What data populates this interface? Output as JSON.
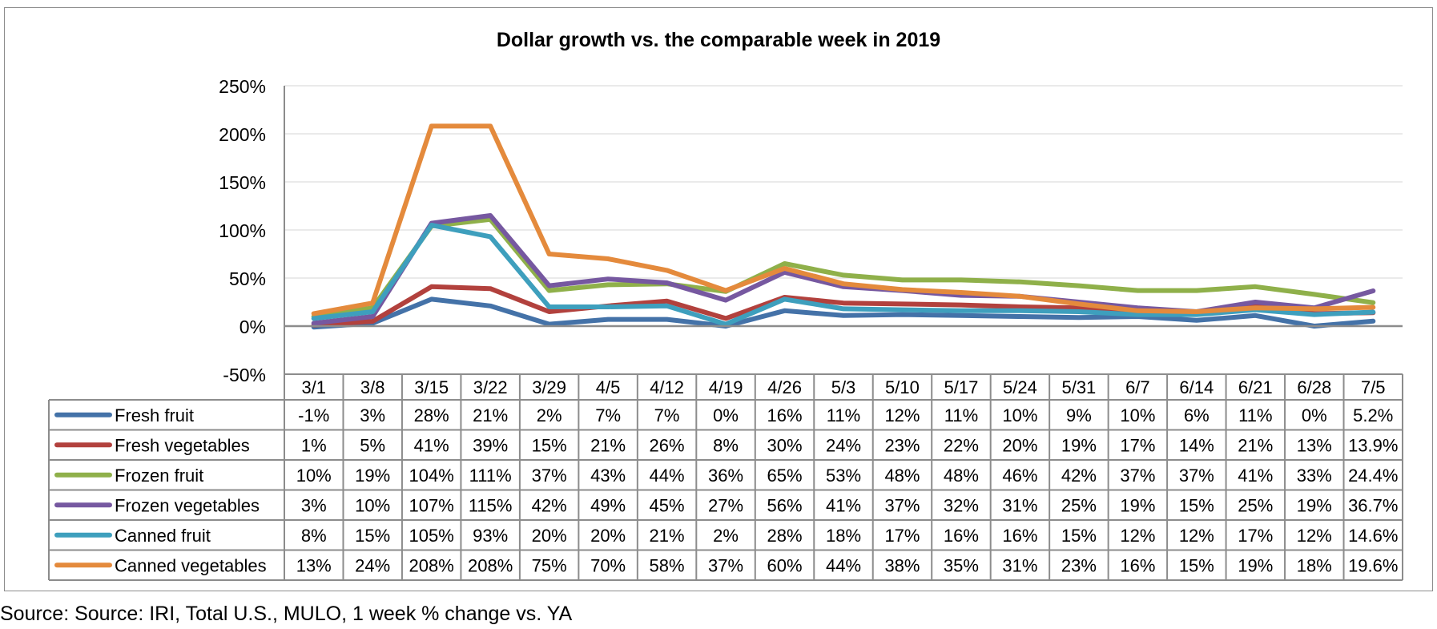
{
  "chart_data": {
    "type": "line",
    "title": "Dollar growth vs. the comparable week in 2019",
    "xlabel": "",
    "ylabel": "",
    "ylim": [
      -50,
      250
    ],
    "yticks": [
      "250%",
      "200%",
      "150%",
      "100%",
      "50%",
      "0%",
      "-50%"
    ],
    "ytick_values": [
      250,
      200,
      150,
      100,
      50,
      0,
      -50
    ],
    "grid": true,
    "legend": "data-table-below",
    "categories": [
      "3/1",
      "3/8",
      "3/15",
      "3/22",
      "3/29",
      "4/5",
      "4/12",
      "4/19",
      "4/26",
      "5/3",
      "5/10",
      "5/17",
      "5/24",
      "5/31",
      "6/7",
      "6/14",
      "6/21",
      "6/28",
      "7/5"
    ],
    "series": [
      {
        "name": "Fresh fruit",
        "color": "#4472a8",
        "values": [
          -1,
          3,
          28,
          21,
          2,
          7,
          7,
          0,
          16,
          11,
          12,
          11,
          10,
          9,
          10,
          6,
          11,
          0,
          5.2
        ],
        "labels": [
          "-1%",
          "3%",
          "28%",
          "21%",
          "2%",
          "7%",
          "7%",
          "0%",
          "16%",
          "11%",
          "12%",
          "11%",
          "10%",
          "9%",
          "10%",
          "6%",
          "11%",
          "0%",
          "5.2%"
        ]
      },
      {
        "name": "Fresh vegetables",
        "color": "#b2413d",
        "values": [
          1,
          5,
          41,
          39,
          15,
          21,
          26,
          8,
          30,
          24,
          23,
          22,
          20,
          19,
          17,
          14,
          21,
          13,
          13.9
        ],
        "labels": [
          "1%",
          "5%",
          "41%",
          "39%",
          "15%",
          "21%",
          "26%",
          "8%",
          "30%",
          "24%",
          "23%",
          "22%",
          "20%",
          "19%",
          "17%",
          "14%",
          "21%",
          "13%",
          "13.9%"
        ]
      },
      {
        "name": "Frozen fruit",
        "color": "#8fb04a",
        "values": [
          10,
          19,
          104,
          111,
          37,
          43,
          44,
          36,
          65,
          53,
          48,
          48,
          46,
          42,
          37,
          37,
          41,
          33,
          24.4
        ],
        "labels": [
          "10%",
          "19%",
          "104%",
          "111%",
          "37%",
          "43%",
          "44%",
          "36%",
          "65%",
          "53%",
          "48%",
          "48%",
          "46%",
          "42%",
          "37%",
          "37%",
          "41%",
          "33%",
          "24.4%"
        ]
      },
      {
        "name": "Frozen vegetables",
        "color": "#7658a0",
        "values": [
          3,
          10,
          107,
          115,
          42,
          49,
          45,
          27,
          56,
          41,
          37,
          32,
          31,
          25,
          19,
          15,
          25,
          19,
          36.7
        ],
        "labels": [
          "3%",
          "10%",
          "107%",
          "115%",
          "42%",
          "49%",
          "45%",
          "27%",
          "56%",
          "41%",
          "37%",
          "32%",
          "31%",
          "25%",
          "19%",
          "15%",
          "25%",
          "19%",
          "36.7%"
        ]
      },
      {
        "name": "Canned fruit",
        "color": "#3e9fbd",
        "values": [
          8,
          15,
          105,
          93,
          20,
          20,
          21,
          2,
          28,
          18,
          17,
          16,
          16,
          15,
          12,
          12,
          17,
          12,
          14.6
        ],
        "labels": [
          "8%",
          "15%",
          "105%",
          "93%",
          "20%",
          "20%",
          "21%",
          "2%",
          "28%",
          "18%",
          "17%",
          "16%",
          "16%",
          "15%",
          "12%",
          "12%",
          "17%",
          "12%",
          "14.6%"
        ]
      },
      {
        "name": "Canned vegetables",
        "color": "#e48a3c",
        "values": [
          13,
          24,
          208,
          208,
          75,
          70,
          58,
          37,
          60,
          44,
          38,
          35,
          31,
          23,
          16,
          15,
          19,
          18,
          19.6
        ],
        "labels": [
          "13%",
          "24%",
          "208%",
          "208%",
          "75%",
          "70%",
          "58%",
          "37%",
          "60%",
          "44%",
          "38%",
          "35%",
          "31%",
          "23%",
          "16%",
          "15%",
          "19%",
          "18%",
          "19.6%"
        ]
      }
    ]
  },
  "source_note": "Source: Source: IRI, Total U.S., MULO, 1 week % change vs. YA"
}
